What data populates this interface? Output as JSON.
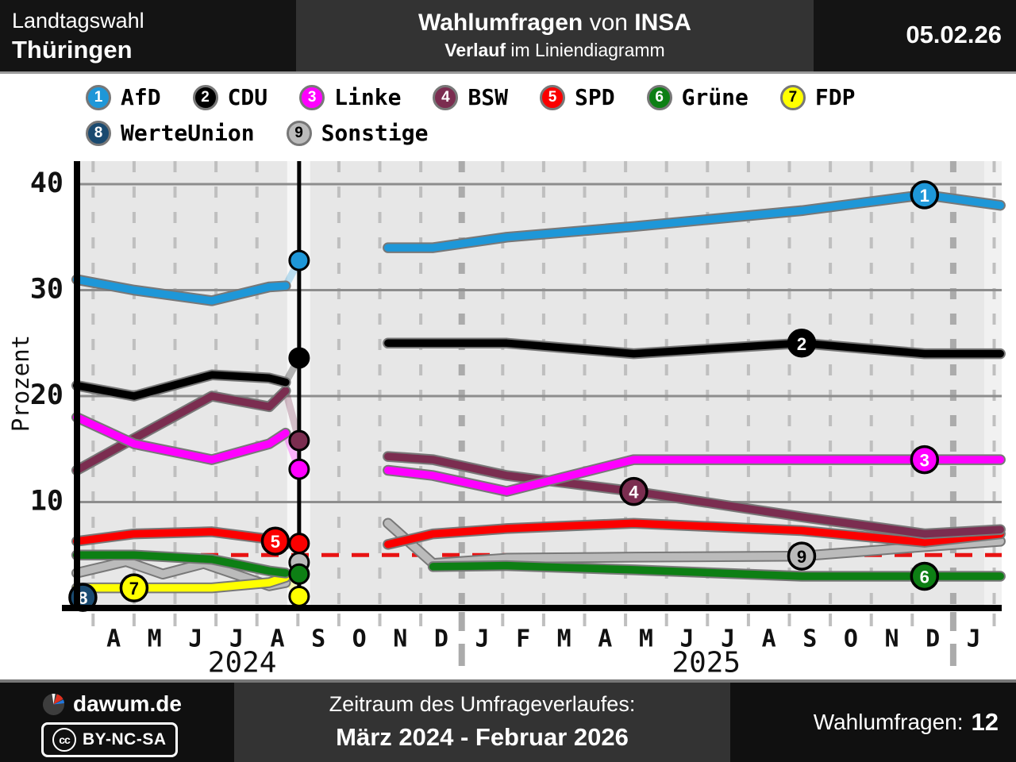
{
  "header": {
    "election": "Landtagswahl",
    "region": "Thüringen",
    "title_bold1": "Wahlumfragen",
    "title_mid": " von ",
    "title_bold2": "INSA",
    "subtitle_bold": "Verlauf",
    "subtitle_rest": " im Liniendiagramm",
    "date": "05.02.26"
  },
  "footer": {
    "brand": "dawum.de",
    "license_icon": "cc",
    "license": "BY-NC-SA",
    "period_label": "Zeitraum des Umfrageverlaufes:",
    "period_value": "März 2024 - Februar 2026",
    "polls_label": "Wahlumfragen:",
    "polls_value": "12"
  },
  "chart_data": {
    "type": "line",
    "ylabel": "Prozent",
    "yticks": [
      10,
      20,
      30,
      40
    ],
    "ylim": [
      0,
      42
    ],
    "grid": true,
    "legend_position": "top",
    "x_unit": "months since March 2024 (label centers)",
    "month_labels": [
      "A",
      "M",
      "J",
      "J",
      "A",
      "S",
      "O",
      "N",
      "D",
      "J",
      "F",
      "M",
      "A",
      "M",
      "J",
      "J",
      "A",
      "S",
      "O",
      "N",
      "D",
      "J"
    ],
    "year_labels": [
      {
        "text": "2024",
        "k": 4.14
      },
      {
        "text": "2025",
        "k": 15.47
      }
    ],
    "year_divider_ks": [
      9.5,
      21.5
    ],
    "threshold_percent": 5,
    "threshold_color": "#e81313",
    "election_line_k": 5.53,
    "plot_bg": "#e7e7e7",
    "series": [
      {
        "id": "sonstige",
        "label": "Sonstige",
        "num": 9,
        "color": "#bbbbbb",
        "text_color": "#000000",
        "pre": [
          [
            0.1,
            3.3
          ],
          [
            1.3,
            4.4
          ],
          [
            2.2,
            3.2
          ],
          [
            3.2,
            4.2
          ],
          [
            4.8,
            2.1
          ],
          [
            5.2,
            2.4
          ]
        ],
        "post": [
          [
            7.7,
            8
          ],
          [
            8.8,
            4.2
          ],
          [
            10.6,
            4.7
          ],
          [
            13.7,
            4.8
          ],
          [
            17.8,
            4.9
          ],
          [
            20.8,
            5.8
          ],
          [
            22.65,
            6.3
          ]
        ],
        "result": 4.3,
        "marker": {
          "seg": "post",
          "k": 17.8
        }
      },
      {
        "id": "werteunion",
        "label": "WerteUnion",
        "num": 8,
        "color": "#1a4a70",
        "text_color": "#ffffff",
        "pre": [
          [
            0.25,
            1.0
          ]
        ],
        "post": [],
        "result": null,
        "marker": {
          "seg": "pre",
          "k": 0.25
        }
      },
      {
        "id": "fdp",
        "label": "FDP",
        "num": 7,
        "color": "#ffff00",
        "text_color": "#000000",
        "pre": [
          [
            0.1,
            1.9
          ],
          [
            1.5,
            1.9
          ],
          [
            3.4,
            1.9
          ],
          [
            4.8,
            2.4
          ],
          [
            5.2,
            2.9
          ]
        ],
        "post": [],
        "result": 1.1,
        "marker": {
          "seg": "pre",
          "k": 1.5
        }
      },
      {
        "id": "gruene",
        "label": "Grüne",
        "num": 6,
        "color": "#0d7f14",
        "text_color": "#ffffff",
        "pre": [
          [
            0.1,
            5
          ],
          [
            1.5,
            5
          ],
          [
            3.4,
            4.6
          ],
          [
            4.8,
            3.5
          ],
          [
            5.2,
            3.3
          ]
        ],
        "post": [
          [
            8.8,
            3.9
          ],
          [
            10.6,
            4
          ],
          [
            13.7,
            3.6
          ],
          [
            17.8,
            3
          ],
          [
            20.8,
            3
          ],
          [
            22.65,
            3
          ]
        ],
        "result": 3.2,
        "marker": {
          "seg": "post",
          "k": 20.8
        }
      },
      {
        "id": "spd",
        "label": "SPD",
        "num": 5,
        "color": "#fb0000",
        "text_color": "#ffffff",
        "pre": [
          [
            0.1,
            6.3
          ],
          [
            1.5,
            7
          ],
          [
            3.4,
            7.2
          ],
          [
            4.8,
            6.5
          ],
          [
            5.2,
            6
          ]
        ],
        "post": [
          [
            7.7,
            6
          ],
          [
            8.8,
            7
          ],
          [
            10.6,
            7.5
          ],
          [
            13.7,
            8
          ],
          [
            17.8,
            7.3
          ],
          [
            20.8,
            6.2
          ],
          [
            22.65,
            7
          ]
        ],
        "result": 6.1,
        "marker": {
          "seg": "pre",
          "k": 4.95
        }
      },
      {
        "id": "bsw",
        "label": "BSW",
        "num": 4,
        "color": "#7b2d50",
        "text_color": "#ffffff",
        "pre": [
          [
            0.1,
            13
          ],
          [
            1.5,
            16
          ],
          [
            3.4,
            20
          ],
          [
            4.8,
            19
          ],
          [
            5.2,
            20.5
          ]
        ],
        "post": [
          [
            7.7,
            14.3
          ],
          [
            8.8,
            14
          ],
          [
            10.6,
            12.5
          ],
          [
            13.7,
            11
          ],
          [
            17.8,
            8.6
          ],
          [
            20.8,
            7
          ],
          [
            22.65,
            7.4
          ]
        ],
        "result": 15.8,
        "marker": {
          "seg": "post",
          "k": 13.7
        }
      },
      {
        "id": "linke",
        "label": "Linke",
        "num": 3,
        "color": "#ff00ff",
        "text_color": "#ffffff",
        "pre": [
          [
            0.1,
            18
          ],
          [
            1.5,
            15.5
          ],
          [
            3.4,
            14
          ],
          [
            4.8,
            15.5
          ],
          [
            5.2,
            16.5
          ]
        ],
        "post": [
          [
            7.7,
            13
          ],
          [
            8.8,
            12.5
          ],
          [
            10.6,
            11
          ],
          [
            13.7,
            14
          ],
          [
            17.8,
            14
          ],
          [
            20.8,
            14
          ],
          [
            22.65,
            14
          ]
        ],
        "result": 13.1,
        "marker": {
          "seg": "post",
          "k": 20.8
        }
      },
      {
        "id": "cdu",
        "label": "CDU",
        "num": 2,
        "color": "#000000",
        "text_color": "#ffffff",
        "pre": [
          [
            0.1,
            21
          ],
          [
            1.5,
            20
          ],
          [
            3.4,
            22
          ],
          [
            4.8,
            21.7
          ],
          [
            5.2,
            21.3
          ]
        ],
        "post": [
          [
            7.7,
            25
          ],
          [
            8.8,
            25
          ],
          [
            10.6,
            25
          ],
          [
            13.7,
            24
          ],
          [
            17.8,
            25
          ],
          [
            20.8,
            24
          ],
          [
            22.65,
            24
          ]
        ],
        "result": 23.6,
        "marker": {
          "seg": "post",
          "k": 17.8
        }
      },
      {
        "id": "afd",
        "label": "AfD",
        "num": 1,
        "color": "#1e97d8",
        "text_color": "#ffffff",
        "pre": [
          [
            0.1,
            31
          ],
          [
            1.5,
            30
          ],
          [
            3.4,
            29
          ],
          [
            4.8,
            30.3
          ],
          [
            5.2,
            30.4
          ]
        ],
        "post": [
          [
            7.7,
            34
          ],
          [
            8.8,
            34
          ],
          [
            10.6,
            35
          ],
          [
            13.7,
            36
          ],
          [
            17.8,
            37.5
          ],
          [
            20.8,
            39
          ],
          [
            22.65,
            38
          ]
        ],
        "result": 32.8,
        "marker": {
          "seg": "post",
          "k": 20.8
        }
      }
    ]
  }
}
